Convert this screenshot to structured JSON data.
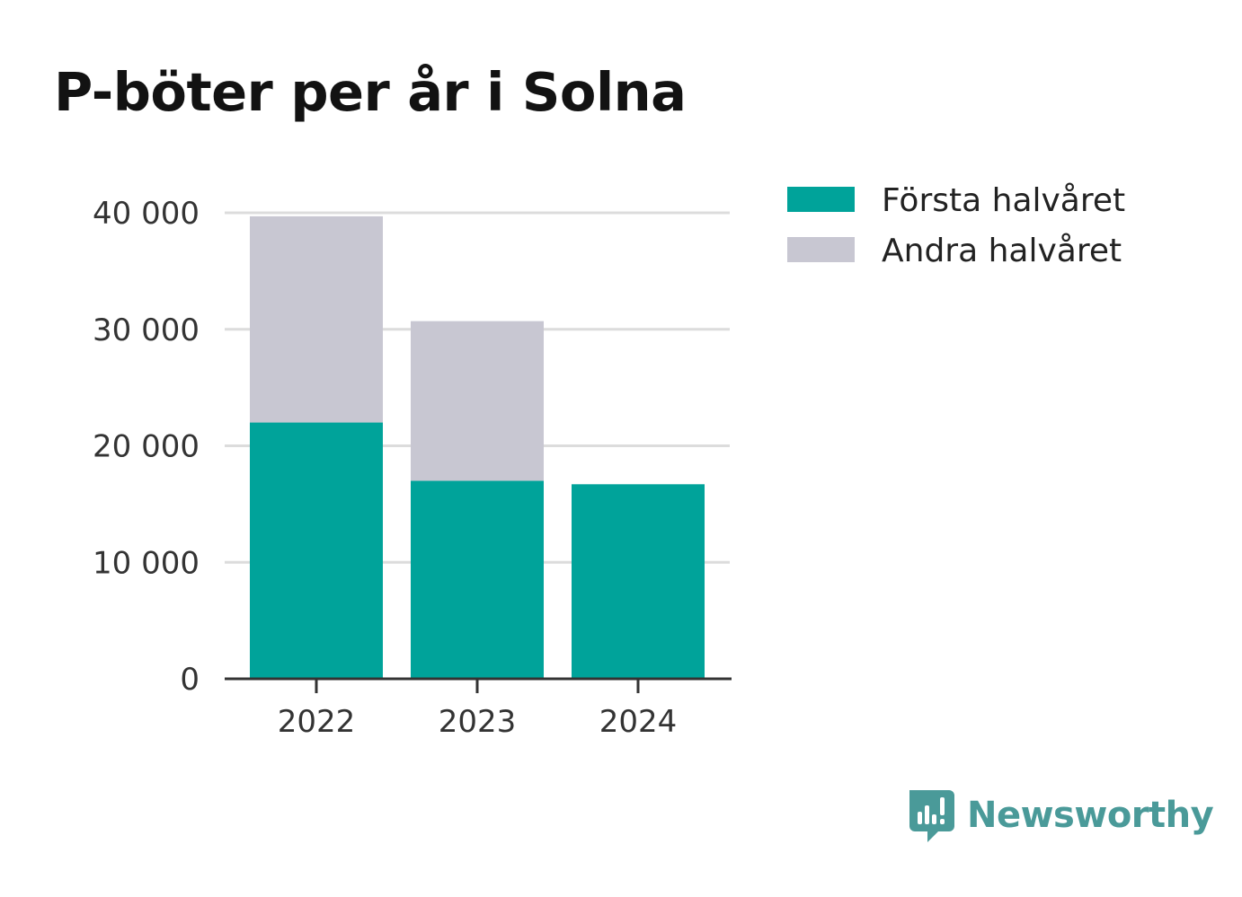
{
  "title": "P-böter per år i Solna",
  "brand": {
    "name": "Newsworthy",
    "icon": "newsworthy-logo-icon",
    "color": "#4a9a99"
  },
  "chart_data": {
    "type": "bar",
    "stacked": true,
    "title": "P-böter per år i Solna",
    "xlabel": "",
    "ylabel": "",
    "categories": [
      "2022",
      "2023",
      "2024"
    ],
    "series": [
      {
        "name": "Första halvåret",
        "color": "#00a39a",
        "values": [
          22000,
          17000,
          16700
        ]
      },
      {
        "name": "Andra halvåret",
        "color": "#c8c7d2",
        "values": [
          17700,
          13700,
          0
        ]
      }
    ],
    "ylim": [
      0,
      40000
    ],
    "yticks": [
      {
        "value": 0,
        "label": "0"
      },
      {
        "value": 10000,
        "label": "10 000"
      },
      {
        "value": 20000,
        "label": "20 000"
      },
      {
        "value": 30000,
        "label": "30 000"
      },
      {
        "value": 40000,
        "label": "40 000"
      }
    ],
    "grid": true,
    "legend_position": "right"
  }
}
